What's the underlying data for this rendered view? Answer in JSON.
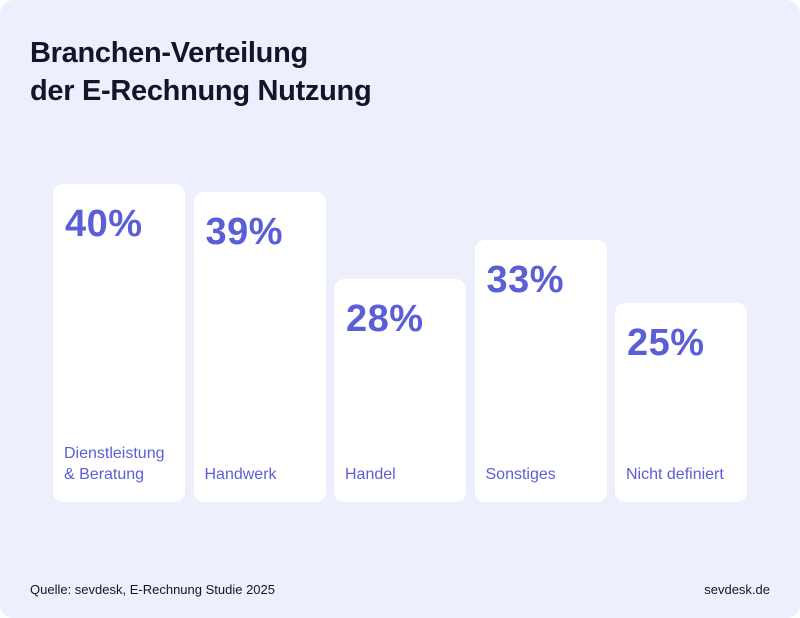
{
  "title_lines": [
    "Branchen-Verteilung",
    "der E-Rechnung Nutzung"
  ],
  "source": "Quelle: sevdesk, E-Rechnung Studie 2025",
  "brand": "sevdesk.de",
  "colors": {
    "background": "#eeeffd",
    "bar": "#ffffff",
    "accent": "#5b5fd6",
    "text": "#14142b"
  },
  "chart_data": {
    "type": "bar",
    "title": "Branchen-Verteilung der E-Rechnung Nutzung",
    "categories": [
      "Dienstleistung\n& Beratung",
      "Handwerk",
      "Handel",
      "Sonstiges",
      "Nicht definiert"
    ],
    "values": [
      40,
      39,
      28,
      33,
      25
    ],
    "value_labels": [
      "40%",
      "39%",
      "28%",
      "33%",
      "25%"
    ],
    "unit": "%",
    "ylim": [
      0,
      40
    ],
    "grid": false,
    "legend": "none"
  }
}
